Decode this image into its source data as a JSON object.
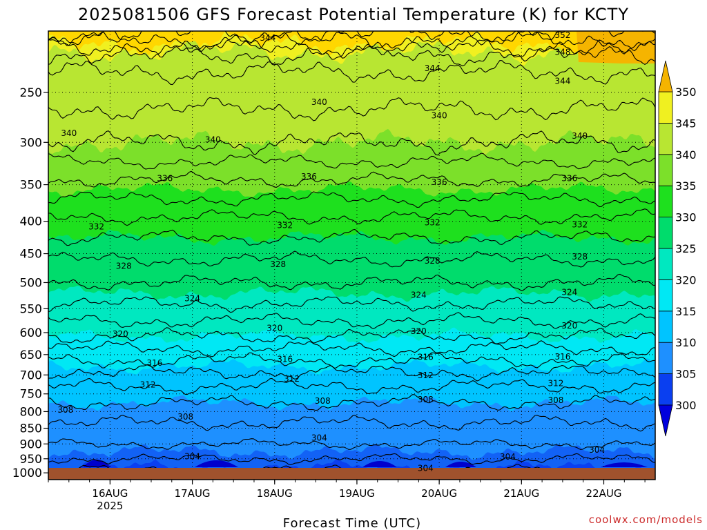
{
  "chart_data": {
    "type": "heatmap",
    "title": "2025081506 GFS Forecast Potential Temperature (K) for KCTY",
    "xlabel": "Forecast Time (UTC)",
    "ylabel": "",
    "credit": "coolwx.com/models",
    "x_ticks": [
      {
        "label": "16AUG",
        "sub": "2025",
        "hours_from_start": 18
      },
      {
        "label": "17AUG",
        "sub": "",
        "hours_from_start": 42
      },
      {
        "label": "18AUG",
        "sub": "",
        "hours_from_start": 66
      },
      {
        "label": "19AUG",
        "sub": "",
        "hours_from_start": 90
      },
      {
        "label": "20AUG",
        "sub": "",
        "hours_from_start": 114
      },
      {
        "label": "21AUG",
        "sub": "",
        "hours_from_start": 138
      },
      {
        "label": "22AUG",
        "sub": "",
        "hours_from_start": 162
      }
    ],
    "y_axis": {
      "scale": "log-pressure",
      "unit": "hPa",
      "range": [
        1025,
        200
      ],
      "ticks": [
        "250",
        "300",
        "350",
        "400",
        "450",
        "500",
        "550",
        "600",
        "650",
        "700",
        "750",
        "800",
        "850",
        "900",
        "950",
        "1000"
      ]
    },
    "colorbar": {
      "ticks": [
        "300",
        "305",
        "310",
        "315",
        "320",
        "325",
        "330",
        "335",
        "340",
        "345",
        "350"
      ],
      "colors": [
        "#0000dd",
        "#0a3ff0",
        "#1262f5",
        "#1e90ff",
        "#00c4ff",
        "#00e8f4",
        "#00e8c0",
        "#00dc6c",
        "#1ee01e",
        "#7ce02a",
        "#b8e632",
        "#f0f020",
        "#ffd700",
        "#f5b400"
      ],
      "levels": [
        295,
        300,
        302.5,
        305,
        310,
        315,
        320,
        325,
        330,
        335,
        340,
        345,
        350,
        355
      ],
      "extend": "both"
    },
    "profile": {
      "pressures": [
        1000,
        950,
        900,
        850,
        800,
        750,
        700,
        650,
        600,
        550,
        500,
        450,
        400,
        350,
        300,
        250,
        200
      ],
      "theta_k": [
        301.5,
        304.0,
        306.0,
        307.5,
        309.0,
        311.0,
        313.5,
        317.0,
        320.5,
        323.5,
        326.0,
        328.5,
        331.5,
        335.5,
        340.0,
        343.0,
        346.0
      ]
    },
    "contour_labels": [
      {
        "text": "344",
        "hours": 64,
        "p": 205
      },
      {
        "text": "352",
        "hours": 150,
        "p": 203
      },
      {
        "text": "348",
        "hours": 150,
        "p": 216
      },
      {
        "text": "344",
        "hours": 112,
        "p": 229
      },
      {
        "text": "344",
        "hours": 150,
        "p": 240
      },
      {
        "text": "340",
        "hours": 79,
        "p": 259
      },
      {
        "text": "340",
        "hours": 114,
        "p": 272
      },
      {
        "text": "340",
        "hours": 6,
        "p": 290
      },
      {
        "text": "340",
        "hours": 48,
        "p": 297
      },
      {
        "text": "340",
        "hours": 155,
        "p": 293
      },
      {
        "text": "336",
        "hours": 34,
        "p": 342
      },
      {
        "text": "336",
        "hours": 76,
        "p": 340
      },
      {
        "text": "336",
        "hours": 114,
        "p": 347
      },
      {
        "text": "336",
        "hours": 152,
        "p": 342
      },
      {
        "text": "332",
        "hours": 14,
        "p": 408
      },
      {
        "text": "332",
        "hours": 69,
        "p": 406
      },
      {
        "text": "332",
        "hours": 112,
        "p": 402
      },
      {
        "text": "332",
        "hours": 155,
        "p": 405
      },
      {
        "text": "328",
        "hours": 22,
        "p": 471
      },
      {
        "text": "328",
        "hours": 67,
        "p": 468
      },
      {
        "text": "328",
        "hours": 112,
        "p": 462
      },
      {
        "text": "328",
        "hours": 155,
        "p": 455
      },
      {
        "text": "324",
        "hours": 42,
        "p": 530
      },
      {
        "text": "324",
        "hours": 108,
        "p": 523
      },
      {
        "text": "324",
        "hours": 152,
        "p": 518
      },
      {
        "text": "320",
        "hours": 21,
        "p": 603
      },
      {
        "text": "320",
        "hours": 66,
        "p": 590
      },
      {
        "text": "320",
        "hours": 108,
        "p": 597
      },
      {
        "text": "320",
        "hours": 152,
        "p": 585
      },
      {
        "text": "316",
        "hours": 31,
        "p": 670
      },
      {
        "text": "316",
        "hours": 69,
        "p": 661
      },
      {
        "text": "316",
        "hours": 110,
        "p": 656
      },
      {
        "text": "316",
        "hours": 150,
        "p": 655
      },
      {
        "text": "312",
        "hours": 29,
        "p": 725
      },
      {
        "text": "312",
        "hours": 71,
        "p": 710
      },
      {
        "text": "312",
        "hours": 110,
        "p": 701
      },
      {
        "text": "312",
        "hours": 148,
        "p": 722
      },
      {
        "text": "308",
        "hours": 5,
        "p": 795
      },
      {
        "text": "308",
        "hours": 40,
        "p": 815
      },
      {
        "text": "308",
        "hours": 80,
        "p": 770
      },
      {
        "text": "308",
        "hours": 110,
        "p": 766
      },
      {
        "text": "308",
        "hours": 148,
        "p": 768
      },
      {
        "text": "304",
        "hours": 79,
        "p": 880
      },
      {
        "text": "304",
        "hours": 42,
        "p": 942
      },
      {
        "text": "304",
        "hours": 134,
        "p": 943
      },
      {
        "text": "304",
        "hours": 160,
        "p": 920
      },
      {
        "text": "304",
        "hours": 110,
        "p": 983
      }
    ]
  }
}
